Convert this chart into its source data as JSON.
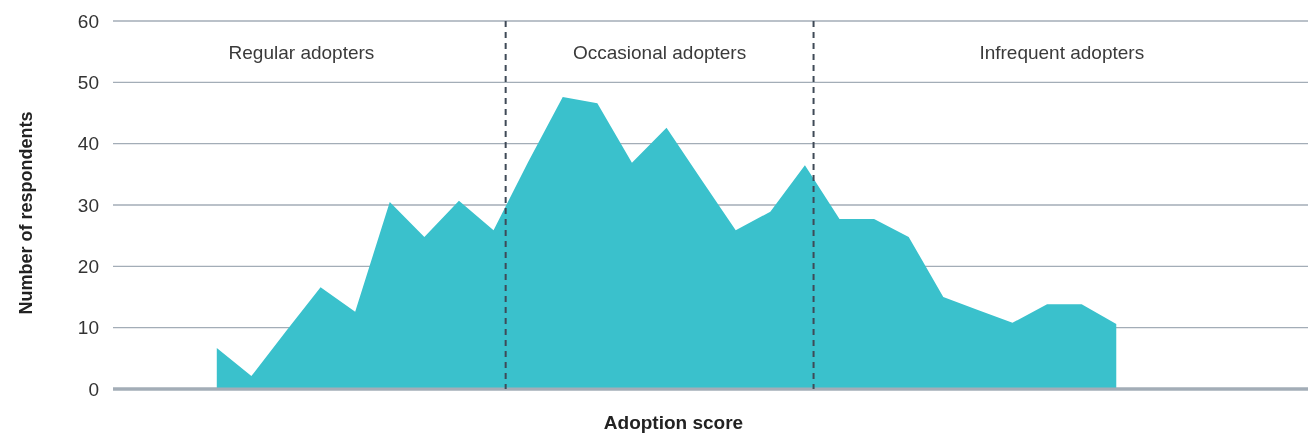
{
  "chart_data": {
    "type": "area",
    "xlabel": "Adoption score",
    "ylabel": "Number of respondents",
    "categories": [
      null,
      null,
      null,
      null,
      null,
      null,
      null,
      null,
      null,
      null,
      null,
      null,
      null,
      null,
      null,
      null,
      null,
      null,
      null,
      null,
      null,
      null,
      null,
      null,
      null,
      null,
      null
    ],
    "series": [
      {
        "color": "#3ac1cc",
        "values": [
          6.7,
          2.1,
          9.4,
          16.6,
          12.6,
          30.5,
          24.8,
          30.7,
          25.9,
          37,
          47.6,
          46.6,
          36.9,
          42.6,
          34.2,
          25.9,
          28.9,
          36.5,
          27.7,
          27.7,
          24.8,
          15.0,
          12.9,
          10.8,
          13.8,
          13.8,
          10.6
        ]
      }
    ],
    "ylim": [
      0,
      60
    ],
    "yticks": [
      0,
      10,
      20,
      30,
      40,
      50,
      60
    ],
    "grid": "y",
    "tick_labels": "y",
    "annotations": [
      "Regular adopters",
      "Occasional adopters",
      "Infrequent adopters"
    ]
  }
}
